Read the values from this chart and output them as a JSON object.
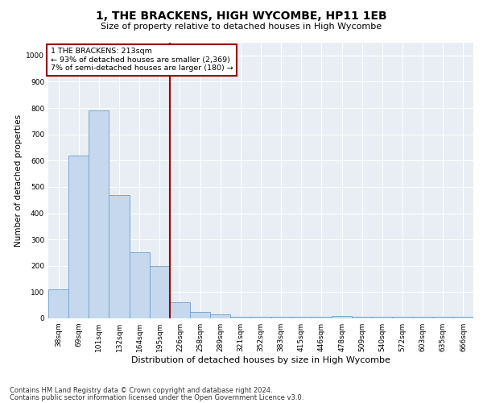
{
  "title": "1, THE BRACKENS, HIGH WYCOMBE, HP11 1EB",
  "subtitle": "Size of property relative to detached houses in High Wycombe",
  "xlabel": "Distribution of detached houses by size in High Wycombe",
  "ylabel": "Number of detached properties",
  "categories": [
    "38sqm",
    "69sqm",
    "101sqm",
    "132sqm",
    "164sqm",
    "195sqm",
    "226sqm",
    "258sqm",
    "289sqm",
    "321sqm",
    "352sqm",
    "383sqm",
    "415sqm",
    "446sqm",
    "478sqm",
    "509sqm",
    "540sqm",
    "572sqm",
    "603sqm",
    "635sqm",
    "666sqm"
  ],
  "all_bar_values": [
    110,
    620,
    790,
    470,
    250,
    200,
    60,
    25,
    15,
    5,
    5,
    5,
    5,
    5,
    10,
    5,
    5,
    5,
    5,
    5,
    5
  ],
  "annotation_line1": "1 THE BRACKENS: 213sqm",
  "annotation_line2": "← 93% of detached houses are smaller (2,369)",
  "annotation_line3": "7% of semi-detached houses are larger (180) →",
  "vline_position": 5.5,
  "bar_color": "#c5d8ed",
  "bar_edge_color": "#7aa8cc",
  "vline_color": "#990000",
  "annotation_box_color": "#990000",
  "ylim": [
    0,
    1050
  ],
  "yticks": [
    0,
    100,
    200,
    300,
    400,
    500,
    600,
    700,
    800,
    900,
    1000
  ],
  "footnote1": "Contains HM Land Registry data © Crown copyright and database right 2024.",
  "footnote2": "Contains public sector information licensed under the Open Government Licence v3.0.",
  "fig_bg_color": "#ffffff",
  "axes_bg_color": "#e8eef4",
  "grid_color": "#ffffff",
  "title_fontsize": 10,
  "subtitle_fontsize": 8,
  "ylabel_fontsize": 7.5,
  "xlabel_fontsize": 8,
  "tick_fontsize": 6.5,
  "footnote_fontsize": 6
}
